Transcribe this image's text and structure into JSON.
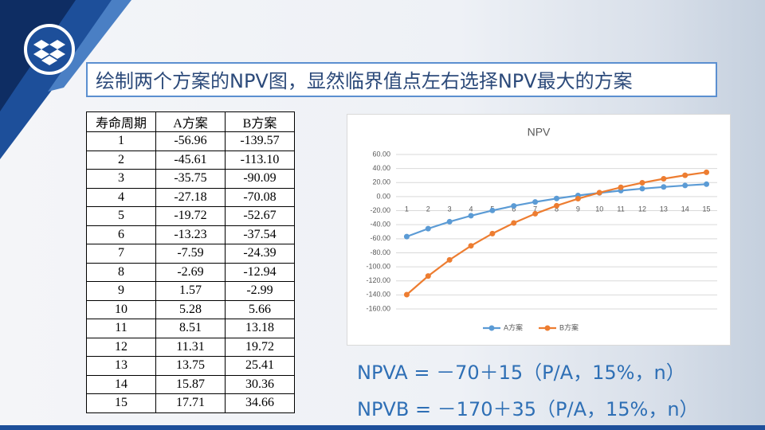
{
  "title": "绘制两个方案的NPV图，显然临界值点左右选择NPV最大的方案",
  "table": {
    "header": [
      "寿命周期",
      "A方案",
      "B方案"
    ],
    "rows": [
      [
        "1",
        "-56.96",
        "-139.57"
      ],
      [
        "2",
        "-45.61",
        "-113.10"
      ],
      [
        "3",
        "-35.75",
        "-90.09"
      ],
      [
        "4",
        "-27.18",
        "-70.08"
      ],
      [
        "5",
        "-19.72",
        "-52.67"
      ],
      [
        "6",
        "-13.23",
        "-37.54"
      ],
      [
        "7",
        "-7.59",
        "-24.39"
      ],
      [
        "8",
        "-2.69",
        "-12.94"
      ],
      [
        "9",
        "1.57",
        "-2.99"
      ],
      [
        "10",
        "5.28",
        "5.66"
      ],
      [
        "11",
        "8.51",
        "13.18"
      ],
      [
        "12",
        "11.31",
        "19.72"
      ],
      [
        "13",
        "13.75",
        "25.41"
      ],
      [
        "14",
        "15.87",
        "30.36"
      ],
      [
        "15",
        "17.71",
        "34.66"
      ]
    ]
  },
  "chart_data": {
    "type": "line",
    "title": "NPV",
    "categories": [
      1,
      2,
      3,
      4,
      5,
      6,
      7,
      8,
      9,
      10,
      11,
      12,
      13,
      14,
      15
    ],
    "series": [
      {
        "name": "A方案",
        "color": "#5b9bd5",
        "values": [
          -56.96,
          -45.61,
          -35.75,
          -27.18,
          -19.72,
          -13.23,
          -7.59,
          -2.69,
          1.57,
          5.28,
          8.51,
          11.31,
          13.75,
          15.87,
          17.71
        ]
      },
      {
        "name": "B方案",
        "color": "#ed7d31",
        "values": [
          -139.57,
          -113.1,
          -90.09,
          -70.08,
          -52.67,
          -37.54,
          -24.39,
          -12.94,
          -2.99,
          5.66,
          13.18,
          19.72,
          25.41,
          30.36,
          34.66
        ]
      }
    ],
    "ylim": [
      -160,
      60
    ],
    "yticks": [
      {
        "value": 60,
        "label": "60.00"
      },
      {
        "value": 40,
        "label": "40.00"
      },
      {
        "value": 20,
        "label": "20.00"
      },
      {
        "value": 0,
        "label": "0.00"
      },
      {
        "value": -20,
        "label": "-20.00"
      },
      {
        "value": -40,
        "label": "-40.00"
      },
      {
        "value": -60,
        "label": "-60.00"
      },
      {
        "value": -80,
        "label": "-80.00"
      },
      {
        "value": -100,
        "label": "-100.00"
      },
      {
        "value": -120,
        "label": "-120.00"
      },
      {
        "value": -140,
        "label": "-140.00"
      },
      {
        "value": -160,
        "label": "-160.00"
      }
    ],
    "grid": true,
    "legend": "bottom"
  },
  "formulas": [
    "NPVA = －70＋15（P/A，15%，n）",
    "NPVB = －170＋35（P/A，15%，n）"
  ]
}
